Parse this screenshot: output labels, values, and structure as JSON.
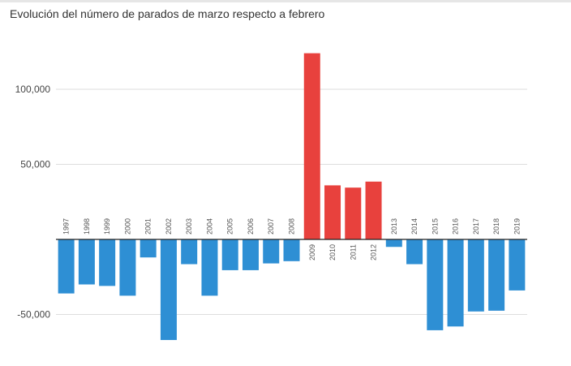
{
  "title": "Evolución del número de parados de marzo respecto a febrero",
  "colors": {
    "negative": "#2e8fd4",
    "positive": "#e8413d",
    "grid": "#dddddd",
    "axis": "#222222"
  },
  "chart_data": {
    "type": "bar",
    "title": "Evolución del número de parados de marzo respecto a febrero",
    "xlabel": "",
    "ylabel": "",
    "categories": [
      "1997",
      "1998",
      "1999",
      "2000",
      "2001",
      "2002",
      "2003",
      "2004",
      "2005",
      "2006",
      "2007",
      "2008",
      "2009",
      "2010",
      "2011",
      "2012",
      "2013",
      "2014",
      "2015",
      "2016",
      "2017",
      "2018",
      "2019"
    ],
    "values": [
      -36000,
      -30000,
      -31000,
      -37500,
      -12000,
      -67000,
      -16500,
      -37500,
      -20500,
      -20500,
      -16000,
      -14500,
      124000,
      36000,
      34500,
      38500,
      -5000,
      -16500,
      -60500,
      -58000,
      -48000,
      -47500,
      -34000
    ],
    "ylim": [
      -70000,
      130000
    ],
    "yticks": [
      {
        "value": 100000,
        "label": "100,000"
      },
      {
        "value": 50000,
        "label": "50,000"
      },
      {
        "value": -50000,
        "label": "-50,000"
      }
    ],
    "grid": true,
    "legend": "none"
  }
}
